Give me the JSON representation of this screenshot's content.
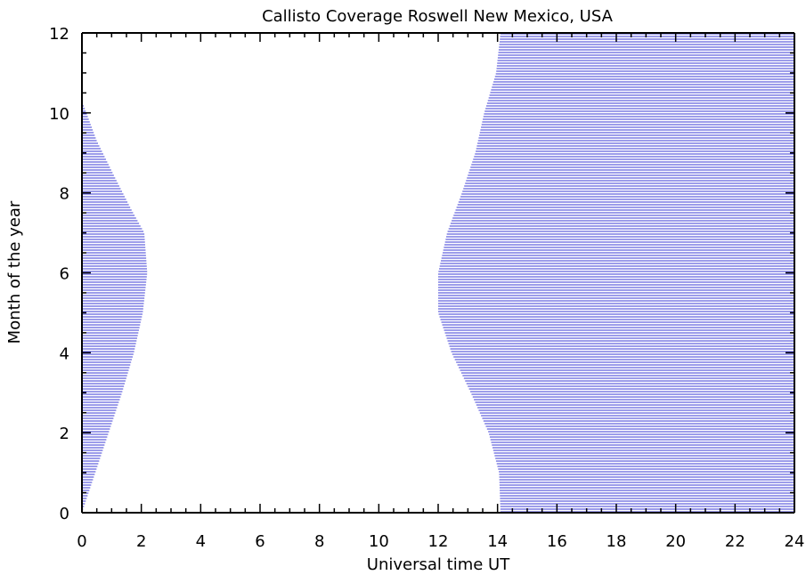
{
  "chart_data": {
    "type": "area",
    "title": "Callisto Coverage Roswell New Mexico, USA",
    "xlabel": "Universal time UT",
    "ylabel": "Month of the year",
    "xlim": [
      0,
      24
    ],
    "ylim": [
      0,
      12
    ],
    "x_ticks": [
      "0",
      "2",
      "4",
      "6",
      "8",
      "10",
      "12",
      "14",
      "16",
      "18",
      "20",
      "22",
      "24"
    ],
    "y_ticks": [
      "0",
      "2",
      "4",
      "6",
      "8",
      "10",
      "12"
    ],
    "grid": false,
    "fill_style": "horizontal hatch lines",
    "series": [
      {
        "coverage_x_start": 0,
        "boundary_x": [
          0.0,
          0.45,
          0.9,
          1.35,
          1.75,
          2.05,
          2.2,
          2.1,
          1.65,
          1.1,
          0.5,
          0.05,
          0.0
        ],
        "boundary_y": [
          0,
          1,
          2,
          3,
          4,
          5,
          6,
          7,
          7.6,
          8.4,
          9.3,
          10.2,
          10.3
        ]
      },
      {
        "coverage_x_end": 24,
        "boundary_x": [
          14.1,
          14.05,
          13.7,
          13.1,
          12.45,
          12.0,
          12.0,
          12.3,
          12.8,
          13.25,
          13.55,
          13.95,
          14.1
        ],
        "boundary_y": [
          0,
          1,
          2,
          3,
          4,
          5,
          6,
          7,
          8,
          9,
          10,
          11,
          12
        ]
      }
    ],
    "colors": {
      "fill": "#3b3bd6",
      "axis": "#000000",
      "background": "#ffffff"
    }
  }
}
